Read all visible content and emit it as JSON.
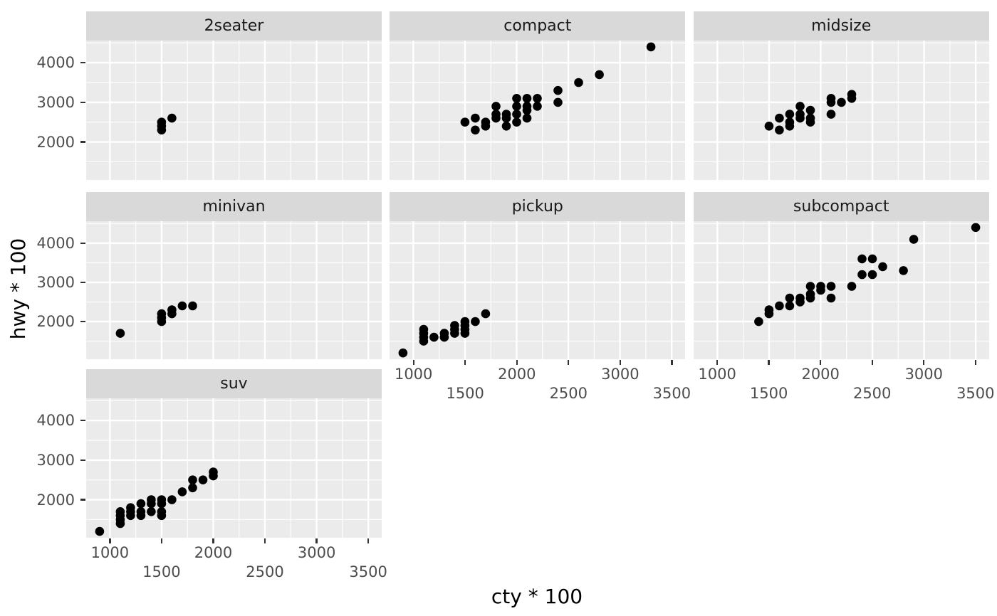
{
  "chart_data": {
    "type": "scatter",
    "title": "",
    "xlabel": "cty * 100",
    "ylabel": "hwy * 100",
    "legend": "none",
    "grid": "on",
    "xlim": [
      770,
      3630
    ],
    "ylim": [
      1040,
      4560
    ],
    "x_major_ticks": [
      1000,
      1500,
      2000,
      2500,
      3000,
      3500
    ],
    "x_minor_ticks": [
      1250,
      1750,
      2250,
      2750,
      3250
    ],
    "x_tick_label_row_upper": [
      1000,
      2000,
      3000
    ],
    "x_tick_label_row_lower": [
      1500,
      2500,
      3500
    ],
    "y_major_ticks": [
      2000,
      3000,
      4000
    ],
    "y_minor_ticks": [
      1500,
      2500,
      3500,
      4500
    ],
    "colors": {
      "panel_bg": "#ebebeb",
      "strip_bg": "#d9d9d9",
      "gridline": "#ffffff",
      "point": "#000000",
      "tick_mark": "#333333",
      "tick_label": "#4d4d4d",
      "axis_title": "#000000",
      "strip_text": "#1a1a1a"
    },
    "facets": [
      {
        "label": "2seater",
        "points": [
          [
            1500,
            2300
          ],
          [
            1500,
            2400
          ],
          [
            1500,
            2500
          ],
          [
            1600,
            2600
          ]
        ]
      },
      {
        "label": "compact",
        "points": [
          [
            1500,
            2500
          ],
          [
            1600,
            2300
          ],
          [
            1600,
            2600
          ],
          [
            1700,
            2400
          ],
          [
            1700,
            2500
          ],
          [
            1800,
            2600
          ],
          [
            1800,
            2700
          ],
          [
            1800,
            2900
          ],
          [
            1900,
            2400
          ],
          [
            1900,
            2600
          ],
          [
            1900,
            2700
          ],
          [
            2000,
            2500
          ],
          [
            2000,
            2700
          ],
          [
            2000,
            2900
          ],
          [
            2000,
            3100
          ],
          [
            2100,
            2600
          ],
          [
            2100,
            2800
          ],
          [
            2100,
            2900
          ],
          [
            2100,
            3100
          ],
          [
            2200,
            2900
          ],
          [
            2200,
            3100
          ],
          [
            2400,
            3000
          ],
          [
            2400,
            3300
          ],
          [
            2600,
            3500
          ],
          [
            2800,
            3700
          ],
          [
            3300,
            4400
          ]
        ]
      },
      {
        "label": "midsize",
        "points": [
          [
            1500,
            2400
          ],
          [
            1600,
            2300
          ],
          [
            1600,
            2600
          ],
          [
            1700,
            2400
          ],
          [
            1700,
            2500
          ],
          [
            1700,
            2700
          ],
          [
            1800,
            2600
          ],
          [
            1800,
            2700
          ],
          [
            1800,
            2900
          ],
          [
            1900,
            2500
          ],
          [
            1900,
            2600
          ],
          [
            1900,
            2800
          ],
          [
            2100,
            2700
          ],
          [
            2100,
            3000
          ],
          [
            2100,
            3100
          ],
          [
            2200,
            3000
          ],
          [
            2300,
            3100
          ],
          [
            2300,
            3200
          ]
        ]
      },
      {
        "label": "minivan",
        "points": [
          [
            1100,
            1700
          ],
          [
            1500,
            2000
          ],
          [
            1500,
            2100
          ],
          [
            1500,
            2200
          ],
          [
            1600,
            2200
          ],
          [
            1600,
            2300
          ],
          [
            1700,
            2400
          ],
          [
            1800,
            2400
          ]
        ]
      },
      {
        "label": "pickup",
        "points": [
          [
            900,
            1200
          ],
          [
            1100,
            1500
          ],
          [
            1100,
            1600
          ],
          [
            1100,
            1700
          ],
          [
            1100,
            1800
          ],
          [
            1200,
            1600
          ],
          [
            1300,
            1600
          ],
          [
            1300,
            1700
          ],
          [
            1400,
            1700
          ],
          [
            1400,
            1800
          ],
          [
            1400,
            1900
          ],
          [
            1500,
            1700
          ],
          [
            1500,
            1800
          ],
          [
            1500,
            1900
          ],
          [
            1500,
            2000
          ],
          [
            1600,
            2000
          ],
          [
            1700,
            2200
          ]
        ]
      },
      {
        "label": "subcompact",
        "points": [
          [
            1400,
            2000
          ],
          [
            1500,
            2200
          ],
          [
            1500,
            2300
          ],
          [
            1600,
            2400
          ],
          [
            1700,
            2400
          ],
          [
            1700,
            2600
          ],
          [
            1800,
            2500
          ],
          [
            1800,
            2600
          ],
          [
            1900,
            2600
          ],
          [
            1900,
            2700
          ],
          [
            1900,
            2900
          ],
          [
            2000,
            2800
          ],
          [
            2000,
            2900
          ],
          [
            2100,
            2600
          ],
          [
            2100,
            2900
          ],
          [
            2300,
            2900
          ],
          [
            2400,
            3200
          ],
          [
            2400,
            3600
          ],
          [
            2500,
            3200
          ],
          [
            2500,
            3600
          ],
          [
            2600,
            3400
          ],
          [
            2800,
            3300
          ],
          [
            2900,
            4100
          ],
          [
            3500,
            4400
          ]
        ]
      },
      {
        "label": "suv",
        "points": [
          [
            900,
            1200
          ],
          [
            1100,
            1400
          ],
          [
            1100,
            1500
          ],
          [
            1100,
            1600
          ],
          [
            1100,
            1700
          ],
          [
            1200,
            1600
          ],
          [
            1200,
            1700
          ],
          [
            1200,
            1800
          ],
          [
            1300,
            1600
          ],
          [
            1300,
            1700
          ],
          [
            1300,
            1900
          ],
          [
            1400,
            1700
          ],
          [
            1400,
            1900
          ],
          [
            1400,
            2000
          ],
          [
            1500,
            1600
          ],
          [
            1500,
            1700
          ],
          [
            1500,
            1900
          ],
          [
            1500,
            2000
          ],
          [
            1600,
            2000
          ],
          [
            1700,
            2200
          ],
          [
            1800,
            2300
          ],
          [
            1800,
            2500
          ],
          [
            1900,
            2500
          ],
          [
            2000,
            2600
          ],
          [
            2000,
            2700
          ]
        ]
      }
    ]
  }
}
